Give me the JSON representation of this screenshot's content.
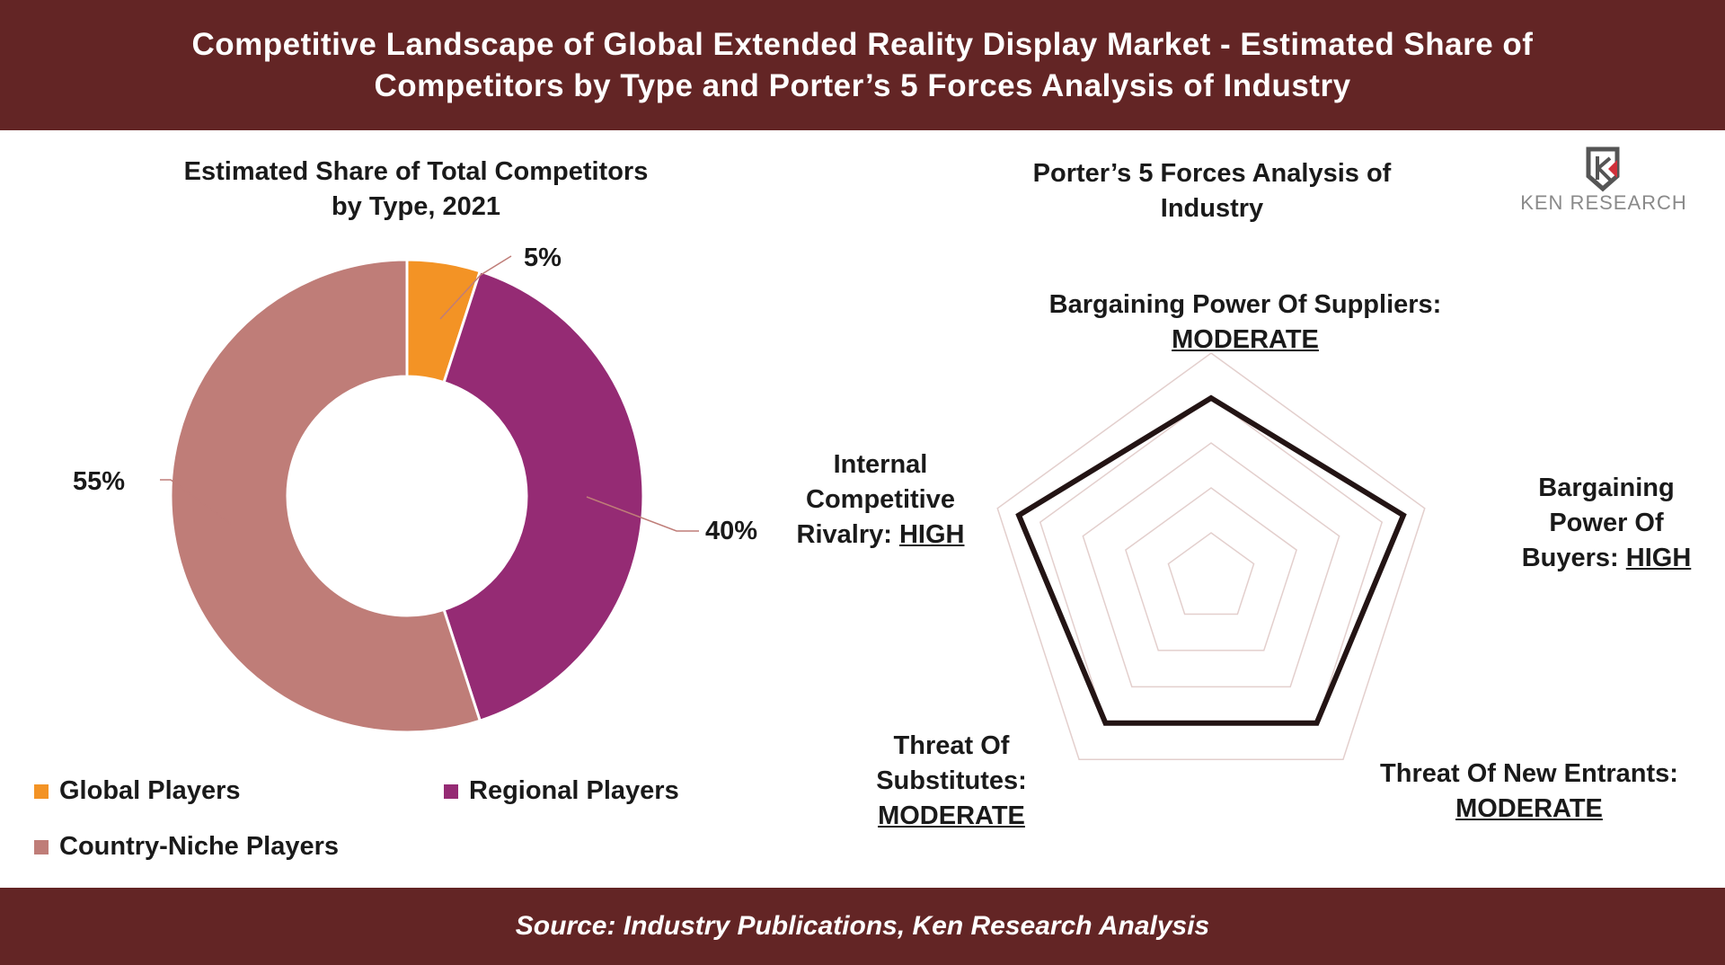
{
  "header": {
    "title_line1": "Competitive Landscape of Global Extended Reality Display Market - Estimated Share of",
    "title_line2": "Competitors by Type and Porter’s 5 Forces Analysis of Industry"
  },
  "footer": {
    "source": "Source: Industry Publications, Ken Research Analysis"
  },
  "logo": {
    "text": "KEN RESEARCH",
    "colors": {
      "grey": "#555555",
      "red": "#D0303A"
    }
  },
  "chart_data": [
    {
      "type": "pie",
      "variant": "donut",
      "title_line1": "Estimated Share of Total Competitors",
      "title_line2": "by Type, 2021",
      "categories": [
        "Global Players",
        "Regional Players",
        "Country-Niche Players"
      ],
      "values": [
        5,
        40,
        55
      ],
      "labels": [
        "5%",
        "40%",
        "55%"
      ],
      "colors": [
        "#F39325",
        "#952B74",
        "#BF7D78"
      ],
      "legend_placement": "bottom"
    },
    {
      "type": "radar",
      "title_line1": "Porter’s 5 Forces Analysis of",
      "title_line2": "Industry",
      "axes": [
        {
          "name": "Bargaining Power Of Suppliers:",
          "rating": "MODERATE",
          "value": 4
        },
        {
          "name": "Bargaining Power Of Buyers:",
          "rating": "HIGH",
          "value": 4.5
        },
        {
          "name": "Threat Of New Entrants:",
          "rating": "MODERATE",
          "value": 4
        },
        {
          "name": "Threat Of Substitutes:",
          "rating": "MODERATE",
          "value": 4
        },
        {
          "name": "Internal Competitive Rivalry:",
          "rating": "HIGH",
          "value": 4.5
        }
      ],
      "range": [
        0,
        5
      ],
      "grid_levels": 5,
      "line_color": "#231414",
      "grid_color": "#E3CFCD"
    }
  ]
}
